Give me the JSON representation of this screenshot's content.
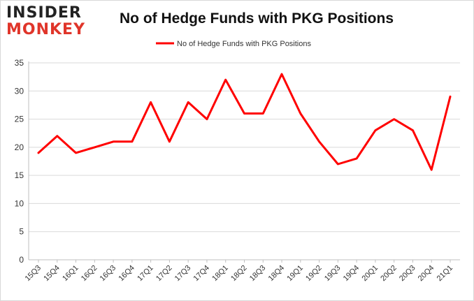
{
  "logo": {
    "line1": "INSIDER",
    "line2": "MONKEY"
  },
  "chart_data": {
    "type": "line",
    "title": "No of Hedge Funds with PKG Positions",
    "xlabel": "",
    "ylabel": "",
    "ylim": [
      0,
      35
    ],
    "yticks": [
      0,
      5,
      10,
      15,
      20,
      25,
      30,
      35
    ],
    "grid": true,
    "legend": "top-center",
    "categories": [
      "15Q3",
      "15Q4",
      "16Q1",
      "16Q2",
      "16Q3",
      "16Q4",
      "17Q1",
      "17Q2",
      "17Q3",
      "17Q4",
      "18Q1",
      "18Q2",
      "18Q3",
      "18Q4",
      "19Q1",
      "19Q2",
      "19Q3",
      "19Q4",
      "20Q1",
      "20Q2",
      "20Q3",
      "20Q4",
      "21Q1"
    ],
    "series": [
      {
        "name": "No of Hedge Funds with PKG Positions",
        "color": "#ff0000",
        "values": [
          19,
          22,
          19,
          20,
          21,
          21,
          28,
          21,
          28,
          25,
          32,
          26,
          26,
          33,
          26,
          21,
          17,
          18,
          23,
          25,
          23,
          16,
          29
        ]
      }
    ]
  }
}
